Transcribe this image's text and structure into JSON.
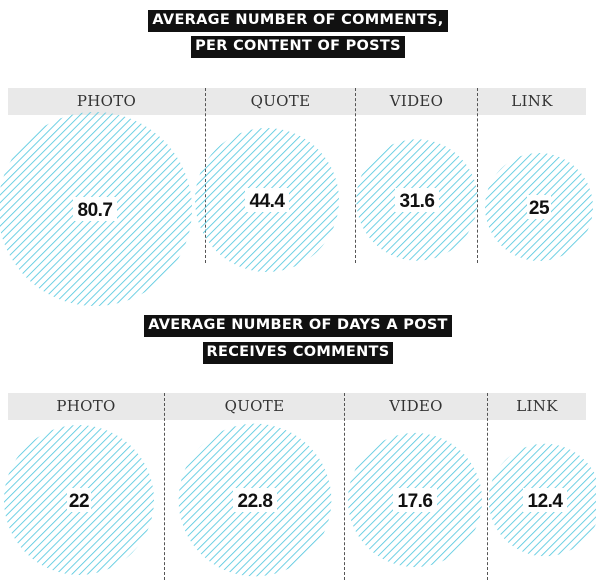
{
  "colors": {
    "bubble": "#55c8df",
    "title_bg": "#111111",
    "header_bg": "#e9e9e9"
  },
  "chart_data": [
    {
      "type": "bubble",
      "title": [
        "AVERAGE NUMBER OF COMMENTS,",
        "PER CONTENT OF POSTS"
      ],
      "categories": [
        "PHOTO",
        "QUOTE",
        "VIDEO",
        "LINK"
      ],
      "values": [
        80.7,
        44.4,
        31.6,
        25
      ],
      "value_labels": [
        "80.7",
        "44.4",
        "31.6",
        "25"
      ]
    },
    {
      "type": "bubble",
      "title": [
        "AVERAGE NUMBER OF DAYS A POST",
        "RECEIVES COMMENTS"
      ],
      "categories": [
        "PHOTO",
        "QUOTE",
        "VIDEO",
        "LINK"
      ],
      "values": [
        22,
        22.8,
        17.6,
        12.4
      ],
      "value_labels": [
        "22",
        "22.8",
        "17.6",
        "12.4"
      ]
    }
  ]
}
